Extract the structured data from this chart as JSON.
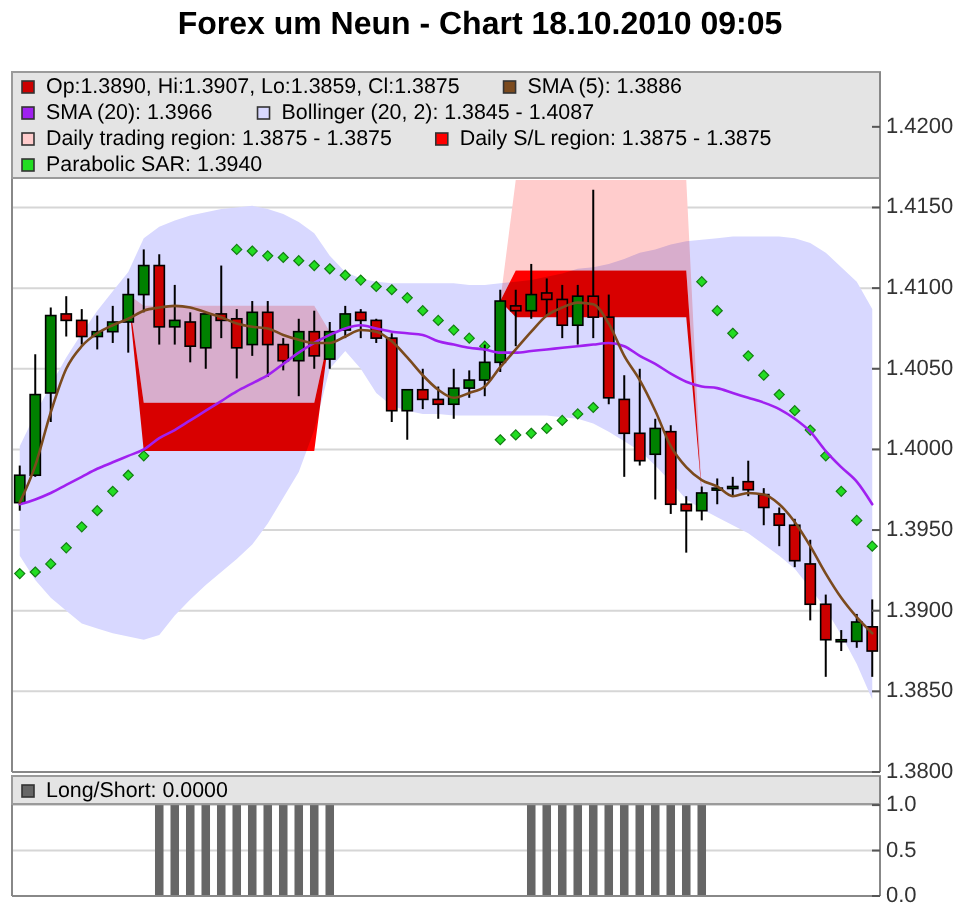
{
  "chart_data": [
    {
      "type": "candlestick",
      "title": "Forex um Neun - Chart 18.10.2010 09:05",
      "categories": [
        null,
        null,
        null,
        null,
        null,
        null,
        null,
        null,
        null,
        null,
        null,
        null,
        null,
        null,
        null,
        null,
        null,
        null,
        null,
        null,
        null,
        null,
        null,
        null,
        null,
        null,
        null,
        null,
        null,
        null,
        null,
        null,
        null,
        null,
        null,
        null,
        null,
        null,
        null,
        null,
        null,
        null,
        null,
        null,
        null,
        null,
        null,
        null,
        null,
        null,
        null,
        null,
        null,
        null,
        null,
        null
      ],
      "series": [
        {
          "name": "Op:1.3890, Hi:1.3907, Lo:1.3859, Cl:1.3875",
          "colors": [
            "#008000",
            "#008000",
            "#008000",
            "#cc0000",
            "#cc0000",
            "#008000",
            "#008000",
            "#008000",
            "#008000",
            "#cc0000",
            "#008000",
            "#cc0000",
            "#008000",
            "#cc0000",
            "#cc0000",
            "#008000",
            "#cc0000",
            "#cc0000",
            "#008000",
            "#cc0000",
            "#008000",
            "#008000",
            "#cc0000",
            "#cc0000",
            "#cc0000",
            "#008000",
            "#cc0000",
            "#cc0000",
            "#008000",
            "#008000",
            "#008000",
            "#008000",
            "#cc0000",
            "#008000",
            "#cc0000",
            "#cc0000",
            "#008000",
            "#cc0000",
            "#cc0000",
            "#cc0000",
            "#cc0000",
            "#008000",
            "#cc0000",
            "#cc0000",
            "#008000",
            "#008000",
            "#008000",
            "#cc0000",
            "#cc0000",
            "#cc0000",
            "#cc0000",
            "#cc0000",
            "#cc0000",
            "#008000",
            "#008000",
            "#cc0000"
          ],
          "ohlc": [
            [
              1.3967,
              1.399,
              1.3962,
              1.3984
            ],
            [
              1.3984,
              1.4059,
              1.3983,
              1.4034
            ],
            [
              1.4035,
              1.4088,
              1.4017,
              1.4083
            ],
            [
              1.4084,
              1.4095,
              1.407,
              1.408
            ],
            [
              1.408,
              1.4087,
              1.4065,
              1.407
            ],
            [
              1.407,
              1.4083,
              1.4062,
              1.4073
            ],
            [
              1.4073,
              1.4089,
              1.4066,
              1.4079
            ],
            [
              1.4079,
              1.4106,
              1.406,
              1.4096
            ],
            [
              1.4096,
              1.4124,
              1.4085,
              1.4114
            ],
            [
              1.4114,
              1.4121,
              1.4065,
              1.4076
            ],
            [
              1.4076,
              1.4102,
              1.4065,
              1.408
            ],
            [
              1.4079,
              1.4085,
              1.4054,
              1.4064
            ],
            [
              1.4063,
              1.4085,
              1.405,
              1.4084
            ],
            [
              1.4084,
              1.4114,
              1.4069,
              1.408
            ],
            [
              1.4081,
              1.4087,
              1.4044,
              1.4063
            ],
            [
              1.4065,
              1.4092,
              1.4058,
              1.4085
            ],
            [
              1.4085,
              1.4092,
              1.4045,
              1.4065
            ],
            [
              1.4065,
              1.4069,
              1.4049,
              1.4055
            ],
            [
              1.4055,
              1.4081,
              1.4033,
              1.4073
            ],
            [
              1.4073,
              1.4086,
              1.405,
              1.4058
            ],
            [
              1.4056,
              1.4079,
              1.405,
              1.4073
            ],
            [
              1.4074,
              1.4089,
              1.4069,
              1.4084
            ],
            [
              1.4085,
              1.4087,
              1.4069,
              1.408
            ],
            [
              1.408,
              1.4081,
              1.4066,
              1.4069
            ],
            [
              1.4069,
              1.4072,
              1.4017,
              1.4024
            ],
            [
              1.4024,
              1.4037,
              1.4006,
              1.4037
            ],
            [
              1.4037,
              1.405,
              1.4025,
              1.4031
            ],
            [
              1.4031,
              1.4039,
              1.4019,
              1.4028
            ],
            [
              1.4028,
              1.405,
              1.4019,
              1.4038
            ],
            [
              1.4038,
              1.4049,
              1.4032,
              1.4043
            ],
            [
              1.4043,
              1.4065,
              1.4033,
              1.4054
            ],
            [
              1.4054,
              1.4099,
              1.4048,
              1.4092
            ],
            [
              1.4089,
              1.4099,
              1.4064,
              1.4086
            ],
            [
              1.4086,
              1.4115,
              1.4081,
              1.4096
            ],
            [
              1.4097,
              1.4106,
              1.4083,
              1.4093
            ],
            [
              1.4093,
              1.4102,
              1.4069,
              1.4077
            ],
            [
              1.4077,
              1.4102,
              1.4065,
              1.4095
            ],
            [
              1.4095,
              1.4161,
              1.4069,
              1.4082
            ],
            [
              1.4082,
              1.4096,
              1.4028,
              1.4032
            ],
            [
              1.4031,
              1.4046,
              1.3983,
              1.401
            ],
            [
              1.401,
              1.405,
              1.399,
              1.3993
            ],
            [
              1.3997,
              1.4019,
              1.3969,
              1.4013
            ],
            [
              1.4011,
              1.4015,
              1.396,
              1.3966
            ],
            [
              1.3966,
              1.3971,
              1.3936,
              1.3962
            ],
            [
              1.3962,
              1.3977,
              1.3956,
              1.3973
            ],
            [
              1.3975,
              1.3982,
              1.3966,
              1.3976
            ],
            [
              1.3977,
              1.3983,
              1.3971,
              1.3977
            ],
            [
              1.398,
              1.3993,
              1.3971,
              1.3975
            ],
            [
              1.3972,
              1.3976,
              1.3953,
              1.3964
            ],
            [
              1.396,
              1.3964,
              1.394,
              1.3953
            ],
            [
              1.3953,
              1.3957,
              1.3927,
              1.3931
            ],
            [
              1.3929,
              1.3944,
              1.3894,
              1.3904
            ],
            [
              1.3904,
              1.391,
              1.3859,
              1.3882
            ],
            [
              1.3882,
              1.3888,
              1.3875,
              1.3882
            ],
            [
              1.3881,
              1.3898,
              1.3877,
              1.3893
            ],
            [
              1.389,
              1.3907,
              1.3859,
              1.3875
            ]
          ]
        },
        {
          "name": "SMA (5): 1.3886",
          "type": "line",
          "color": "#7b4a1e",
          "values": [
            1.3967,
            1.399,
            1.4023,
            1.405,
            1.4064,
            1.4072,
            1.4077,
            1.4081,
            1.4086,
            1.4088,
            1.4089,
            1.4088,
            1.4085,
            1.4082,
            1.4078,
            1.4076,
            1.4075,
            1.4071,
            1.4068,
            1.4066,
            1.4066,
            1.407,
            1.4074,
            1.4073,
            1.4067,
            1.4057,
            1.4046,
            1.4037,
            1.4032,
            1.4035,
            1.4039,
            1.4051,
            1.4062,
            1.4073,
            1.4083,
            1.4088,
            1.4091,
            1.409,
            1.4078,
            1.4058,
            1.4043,
            1.4024,
            1.4002,
            1.3989,
            1.3981,
            1.3977,
            1.3971,
            1.3973,
            1.3972,
            1.3966,
            1.3955,
            1.394,
            1.3923,
            1.3908,
            1.3896,
            1.3886
          ]
        },
        {
          "name": "SMA (20): 1.3966",
          "type": "line",
          "color": "#a020f0",
          "values": [
            1.3966,
            1.3969,
            1.3973,
            1.3978,
            1.3983,
            1.3988,
            1.3992,
            1.3996,
            1.4,
            1.4007,
            1.4012,
            1.4018,
            1.4024,
            1.403,
            1.4036,
            1.4041,
            1.4046,
            1.4053,
            1.406,
            1.4066,
            1.4071,
            1.4075,
            1.4077,
            1.4075,
            1.4073,
            1.4072,
            1.4071,
            1.4067,
            1.4065,
            1.4063,
            1.4062,
            1.406,
            1.406,
            1.4061,
            1.4062,
            1.4063,
            1.4064,
            1.4065,
            1.4066,
            1.4064,
            1.4058,
            1.4053,
            1.4047,
            1.4042,
            1.4039,
            1.4038,
            1.4035,
            1.4032,
            1.4029,
            1.4025,
            1.4019,
            1.4011,
            1.3999,
            1.3989,
            1.398,
            1.3966
          ]
        },
        {
          "name": "Bollinger (20, 2): 1.3845 - 1.4087",
          "type": "area",
          "color": "#d8d8ff",
          "values": [
            null,
            null,
            null,
            null,
            null,
            null,
            null,
            null,
            null,
            null,
            null,
            null,
            null,
            null,
            null,
            null,
            null,
            null,
            null,
            null,
            null,
            null,
            null,
            null,
            null,
            null,
            null,
            null,
            null,
            null,
            null,
            null,
            null,
            null,
            null,
            null,
            null,
            null,
            null,
            null,
            null,
            null,
            null,
            null,
            null,
            null,
            null,
            null,
            null,
            null,
            null,
            null,
            null,
            null,
            null,
            null
          ],
          "lower": [
            1.3934,
            1.3919,
            1.3908,
            1.39,
            1.3892,
            1.3889,
            1.3886,
            1.3884,
            1.3882,
            1.3885,
            1.3897,
            1.3907,
            1.3916,
            1.3924,
            1.3932,
            1.3941,
            1.3954,
            1.397,
            1.3986,
            1.4012,
            1.405,
            1.4061,
            1.405,
            1.4035,
            1.4027,
            1.4024,
            1.4022,
            1.4022,
            1.4021,
            1.4021,
            1.4021,
            1.4021,
            1.4021,
            1.4021,
            1.4021,
            1.402,
            1.4019,
            1.4016,
            1.4011,
            1.4005,
            1.3999,
            1.399,
            1.398,
            1.3969,
            1.3963,
            1.3958,
            1.3953,
            1.3948,
            1.3941,
            1.3934,
            1.3926,
            1.3914,
            1.3901,
            1.3885,
            1.3867,
            1.3845
          ],
          "upper": [
            1.4002,
            1.4022,
            1.404,
            1.4057,
            1.4072,
            1.4086,
            1.4098,
            1.411,
            1.4131,
            1.4138,
            1.4142,
            1.4145,
            1.4147,
            1.4149,
            1.415,
            1.4151,
            1.4149,
            1.4146,
            1.4141,
            1.4134,
            1.412,
            1.411,
            1.4106,
            1.4104,
            1.4103,
            1.4103,
            1.4103,
            1.4103,
            1.4103,
            1.4102,
            1.4102,
            1.4103,
            1.4104,
            1.4105,
            1.4107,
            1.4109,
            1.4112,
            1.4113,
            1.4115,
            1.4118,
            1.4122,
            1.4124,
            1.4127,
            1.4129,
            1.413,
            1.4131,
            1.4132,
            1.4132,
            1.4132,
            1.4132,
            1.4131,
            1.4128,
            1.4122,
            1.4113,
            1.4104,
            1.4087
          ]
        },
        {
          "name": "Daily trading region: 1.3875 - 1.3875",
          "type": "area",
          "color": "#ffcccc",
          "values": [
            null,
            null,
            null,
            null,
            null,
            null,
            null,
            null,
            null,
            null,
            null,
            null,
            null,
            null,
            null,
            null,
            null,
            null,
            null,
            null,
            null,
            null,
            null,
            null,
            null,
            null,
            null,
            null,
            null,
            null,
            null,
            null,
            null,
            null,
            null,
            null,
            null,
            null,
            null,
            null,
            null,
            null,
            null,
            null,
            null,
            null,
            null,
            null,
            null,
            null,
            null,
            null,
            null,
            null,
            null,
            null
          ],
          "lower": [
            null,
            null,
            null,
            null,
            null,
            null,
            null,
            1.4096,
            1.4029,
            1.4029,
            1.4029,
            1.4029,
            1.4029,
            1.4029,
            1.4029,
            1.4029,
            1.4029,
            1.4029,
            1.4029,
            1.4029,
            1.4073,
            null,
            null,
            null,
            null,
            null,
            null,
            null,
            null,
            null,
            null,
            1.4092,
            1.4111,
            1.4111,
            1.4111,
            1.4111,
            1.4111,
            1.4111,
            1.4111,
            1.4111,
            1.4111,
            1.4111,
            1.4111,
            1.4111,
            1.3973,
            null,
            null,
            null,
            null,
            null,
            null,
            null,
            null,
            null,
            null,
            null
          ],
          "upper": [
            null,
            null,
            null,
            null,
            null,
            null,
            null,
            1.4096,
            1.4089,
            1.4089,
            1.4089,
            1.4089,
            1.4089,
            1.4089,
            1.4089,
            1.4089,
            1.4089,
            1.4089,
            1.4089,
            1.4089,
            1.4073,
            null,
            null,
            null,
            null,
            null,
            null,
            null,
            null,
            null,
            null,
            1.4092,
            1.4167,
            1.4167,
            1.4167,
            1.4167,
            1.4167,
            1.4167,
            1.4167,
            1.4167,
            1.4167,
            1.4167,
            1.4167,
            1.4167,
            1.3973,
            null,
            null,
            null,
            null,
            null,
            null,
            null,
            null,
            null,
            null,
            null
          ]
        },
        {
          "name": "Daily S/L region: 1.3875 - 1.3875",
          "type": "area",
          "color": "#ff0000",
          "values": [
            null,
            null,
            null,
            null,
            null,
            null,
            null,
            null,
            null,
            null,
            null,
            null,
            null,
            null,
            null,
            null,
            null,
            null,
            null,
            null,
            null,
            null,
            null,
            null,
            null,
            null,
            null,
            null,
            null,
            null,
            null,
            null,
            null,
            null,
            null,
            null,
            null,
            null,
            null,
            null,
            null,
            null,
            null,
            null,
            null,
            null,
            null,
            null,
            null,
            null,
            null,
            null,
            null,
            null,
            null,
            null
          ],
          "lower": [
            null,
            null,
            null,
            null,
            null,
            null,
            null,
            1.4096,
            1.3999,
            1.3999,
            1.3999,
            1.3999,
            1.3999,
            1.3999,
            1.3999,
            1.3999,
            1.3999,
            1.3999,
            1.3999,
            1.3999,
            1.4073,
            null,
            null,
            null,
            null,
            null,
            null,
            null,
            null,
            null,
            null,
            1.4092,
            1.4082,
            1.4082,
            1.4082,
            1.4082,
            1.4082,
            1.4082,
            1.4082,
            1.4082,
            1.4082,
            1.4082,
            1.4082,
            1.4082,
            1.3973,
            null,
            null,
            null,
            null,
            null,
            null,
            null,
            null,
            null,
            null,
            null
          ],
          "upper": [
            null,
            null,
            null,
            null,
            null,
            null,
            null,
            1.4096,
            1.4029,
            1.4029,
            1.4029,
            1.4029,
            1.4029,
            1.4029,
            1.4029,
            1.4029,
            1.4029,
            1.4029,
            1.4029,
            1.4029,
            1.4073,
            null,
            null,
            null,
            null,
            null,
            null,
            null,
            null,
            null,
            null,
            1.4092,
            1.4111,
            1.4111,
            1.4111,
            1.4111,
            1.4111,
            1.4111,
            1.4111,
            1.4111,
            1.4111,
            1.4111,
            1.4111,
            1.4111,
            1.3973,
            null,
            null,
            null,
            null,
            null,
            null,
            null,
            null,
            null,
            null,
            null
          ]
        },
        {
          "name": "Parabolic SAR: 1.3940",
          "type": "scatter",
          "color": "#22dd22",
          "marker": "diamond",
          "values": [
            1.3923,
            1.3924,
            1.3929,
            1.3939,
            1.3952,
            1.3962,
            1.3974,
            1.3984,
            1.3996,
            null,
            null,
            null,
            null,
            null,
            1.4124,
            1.4123,
            1.412,
            1.4119,
            1.4117,
            1.4114,
            1.4112,
            1.4108,
            1.4105,
            1.4101,
            1.4099,
            1.4094,
            1.4086,
            1.408,
            1.4074,
            1.4069,
            1.4064,
            1.4006,
            1.4009,
            1.401,
            1.4013,
            1.4018,
            1.4022,
            1.4026,
            null,
            null,
            null,
            null,
            null,
            null,
            1.4104,
            1.4086,
            1.4072,
            1.4058,
            1.4046,
            1.4034,
            1.4024,
            1.4012,
            1.3996,
            1.3974,
            1.3956,
            1.394
          ]
        }
      ],
      "ylim": [
        1.38,
        1.4234
      ],
      "yticks": [
        {
          "value": 1.38,
          "label": "1.3800"
        },
        {
          "value": 1.385,
          "label": "1.3850"
        },
        {
          "value": 1.39,
          "label": "1.3900"
        },
        {
          "value": 1.395,
          "label": "1.3950"
        },
        {
          "value": 1.4,
          "label": "1.4000"
        },
        {
          "value": 1.405,
          "label": "1.4050"
        },
        {
          "value": 1.41,
          "label": "1.4100"
        },
        {
          "value": 1.415,
          "label": "1.4150"
        },
        {
          "value": 1.42,
          "label": "1.4200"
        }
      ],
      "grid": "y",
      "legend": "top"
    },
    {
      "type": "bar",
      "categories": [
        null,
        null,
        null,
        null,
        null,
        null,
        null,
        null,
        null,
        null,
        null,
        null,
        null,
        null,
        null,
        null,
        null,
        null,
        null,
        null,
        null,
        null,
        null,
        null,
        null,
        null,
        null,
        null,
        null,
        null,
        null,
        null,
        null,
        null,
        null,
        null,
        null,
        null,
        null,
        null,
        null,
        null,
        null,
        null,
        null,
        null,
        null,
        null,
        null,
        null,
        null,
        null,
        null,
        null,
        null,
        null
      ],
      "series": [
        {
          "name": "Long/Short: 0.0000",
          "color": "#666666",
          "values": [
            0,
            0,
            0,
            0,
            0,
            0,
            0,
            0,
            0,
            1,
            1,
            1,
            1,
            1,
            1,
            1,
            1,
            1,
            1,
            1,
            1,
            0,
            0,
            0,
            0,
            0,
            0,
            0,
            0,
            0,
            0,
            0,
            0,
            1,
            1,
            1,
            1,
            1,
            1,
            1,
            1,
            1,
            1,
            1,
            1,
            0,
            0,
            0,
            0,
            0,
            0,
            0,
            0,
            0,
            0,
            0
          ]
        }
      ],
      "ylim": [
        0,
        1.32
      ],
      "yticks": [
        {
          "value": 0,
          "label": "0.0"
        },
        {
          "value": 0.5,
          "label": "0.5"
        },
        {
          "value": 1,
          "label": "1.0"
        }
      ],
      "grid": "y",
      "legend": "top"
    }
  ]
}
